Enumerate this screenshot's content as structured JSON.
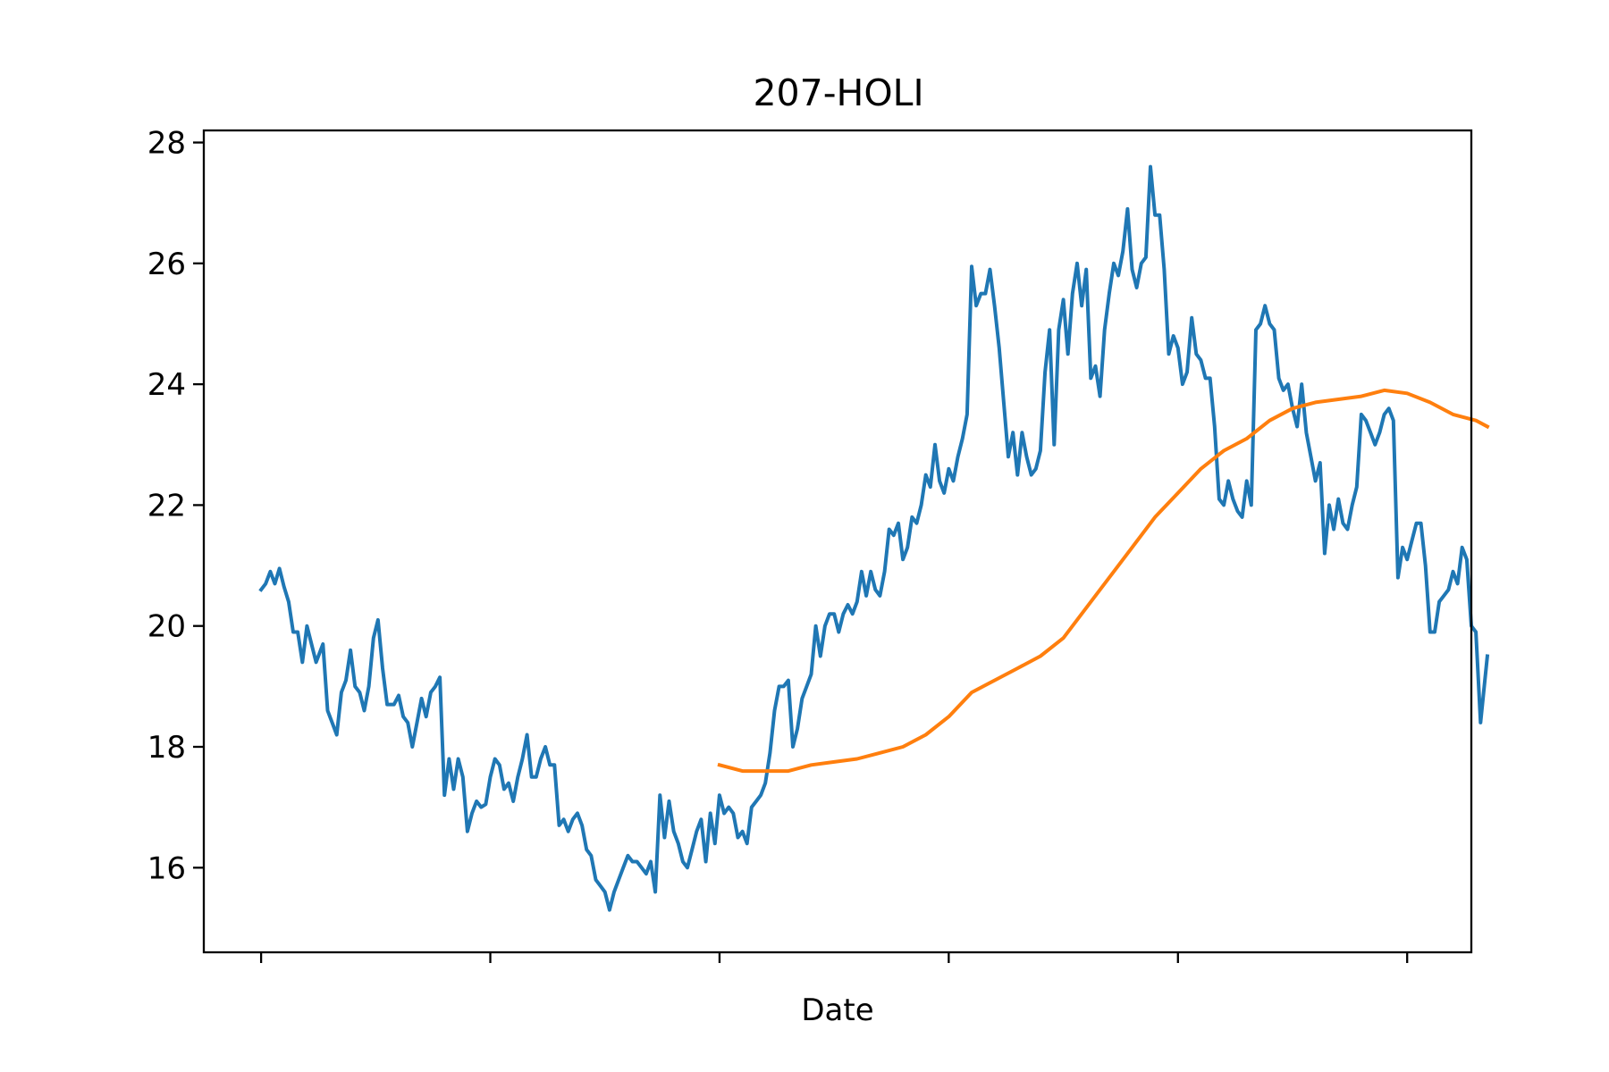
{
  "chart_data": {
    "type": "line",
    "title": "207-HOLI",
    "xlabel": "Date",
    "ylabel": "",
    "x_ticks": 6,
    "x_range": [
      -0.25,
      5.28
    ],
    "ylim": [
      14.6,
      28.2
    ],
    "y_ticks": [
      16,
      18,
      20,
      22,
      24,
      26,
      28
    ],
    "x_tick_labels": [
      "",
      "",
      "",
      "",
      "",
      ""
    ],
    "grid": false,
    "legend": "none",
    "series": [
      {
        "color": "#1f77b4",
        "points": [
          [
            0.0,
            20.6
          ],
          [
            0.02,
            20.7
          ],
          [
            0.04,
            20.9
          ],
          [
            0.06,
            20.7
          ],
          [
            0.08,
            20.95
          ],
          [
            0.1,
            20.65
          ],
          [
            0.12,
            20.4
          ],
          [
            0.14,
            19.9
          ],
          [
            0.16,
            19.9
          ],
          [
            0.18,
            19.4
          ],
          [
            0.2,
            20.0
          ],
          [
            0.22,
            19.7
          ],
          [
            0.24,
            19.4
          ],
          [
            0.27,
            19.7
          ],
          [
            0.29,
            18.6
          ],
          [
            0.31,
            18.4
          ],
          [
            0.33,
            18.2
          ],
          [
            0.35,
            18.9
          ],
          [
            0.37,
            19.1
          ],
          [
            0.39,
            19.6
          ],
          [
            0.41,
            19.0
          ],
          [
            0.43,
            18.9
          ],
          [
            0.45,
            18.6
          ],
          [
            0.47,
            19.0
          ],
          [
            0.49,
            19.8
          ],
          [
            0.51,
            20.1
          ],
          [
            0.53,
            19.3
          ],
          [
            0.55,
            18.7
          ],
          [
            0.58,
            18.7
          ],
          [
            0.6,
            18.85
          ],
          [
            0.62,
            18.5
          ],
          [
            0.64,
            18.4
          ],
          [
            0.66,
            18.0
          ],
          [
            0.68,
            18.4
          ],
          [
            0.7,
            18.8
          ],
          [
            0.72,
            18.5
          ],
          [
            0.74,
            18.9
          ],
          [
            0.76,
            19.0
          ],
          [
            0.78,
            19.15
          ],
          [
            0.8,
            17.2
          ],
          [
            0.82,
            17.8
          ],
          [
            0.84,
            17.3
          ],
          [
            0.86,
            17.8
          ],
          [
            0.88,
            17.5
          ],
          [
            0.9,
            16.6
          ],
          [
            0.92,
            16.9
          ],
          [
            0.94,
            17.1
          ],
          [
            0.96,
            17.0
          ],
          [
            0.98,
            17.05
          ],
          [
            1.0,
            17.5
          ],
          [
            1.02,
            17.8
          ],
          [
            1.04,
            17.7
          ],
          [
            1.06,
            17.3
          ],
          [
            1.08,
            17.4
          ],
          [
            1.1,
            17.1
          ],
          [
            1.12,
            17.5
          ],
          [
            1.14,
            17.8
          ],
          [
            1.16,
            18.2
          ],
          [
            1.18,
            17.5
          ],
          [
            1.2,
            17.5
          ],
          [
            1.22,
            17.8
          ],
          [
            1.24,
            18.0
          ],
          [
            1.26,
            17.7
          ],
          [
            1.28,
            17.7
          ],
          [
            1.3,
            16.7
          ],
          [
            1.32,
            16.8
          ],
          [
            1.34,
            16.6
          ],
          [
            1.36,
            16.8
          ],
          [
            1.38,
            16.9
          ],
          [
            1.4,
            16.7
          ],
          [
            1.42,
            16.3
          ],
          [
            1.44,
            16.2
          ],
          [
            1.46,
            15.8
          ],
          [
            1.48,
            15.7
          ],
          [
            1.5,
            15.6
          ],
          [
            1.52,
            15.3
          ],
          [
            1.54,
            15.6
          ],
          [
            1.56,
            15.8
          ],
          [
            1.58,
            16.0
          ],
          [
            1.6,
            16.2
          ],
          [
            1.62,
            16.1
          ],
          [
            1.64,
            16.1
          ],
          [
            1.66,
            16.0
          ],
          [
            1.68,
            15.9
          ],
          [
            1.7,
            16.1
          ],
          [
            1.72,
            15.6
          ],
          [
            1.74,
            17.2
          ],
          [
            1.76,
            16.5
          ],
          [
            1.78,
            17.1
          ],
          [
            1.8,
            16.6
          ],
          [
            1.82,
            16.4
          ],
          [
            1.84,
            16.1
          ],
          [
            1.86,
            16.0
          ],
          [
            1.88,
            16.3
          ],
          [
            1.9,
            16.6
          ],
          [
            1.92,
            16.8
          ],
          [
            1.94,
            16.1
          ],
          [
            1.96,
            16.9
          ],
          [
            1.98,
            16.4
          ],
          [
            2.0,
            17.2
          ],
          [
            2.02,
            16.9
          ],
          [
            2.04,
            17.0
          ],
          [
            2.06,
            16.9
          ],
          [
            2.08,
            16.5
          ],
          [
            2.1,
            16.6
          ],
          [
            2.12,
            16.4
          ],
          [
            2.14,
            17.0
          ],
          [
            2.16,
            17.1
          ],
          [
            2.18,
            17.2
          ],
          [
            2.2,
            17.4
          ],
          [
            2.22,
            17.9
          ],
          [
            2.24,
            18.6
          ],
          [
            2.26,
            19.0
          ],
          [
            2.28,
            19.0
          ],
          [
            2.3,
            19.1
          ],
          [
            2.32,
            18.0
          ],
          [
            2.34,
            18.3
          ],
          [
            2.36,
            18.8
          ],
          [
            2.38,
            19.0
          ],
          [
            2.4,
            19.2
          ],
          [
            2.42,
            20.0
          ],
          [
            2.44,
            19.5
          ],
          [
            2.46,
            20.0
          ],
          [
            2.48,
            20.2
          ],
          [
            2.5,
            20.2
          ],
          [
            2.52,
            19.9
          ],
          [
            2.54,
            20.2
          ],
          [
            2.56,
            20.35
          ],
          [
            2.58,
            20.2
          ],
          [
            2.6,
            20.4
          ],
          [
            2.62,
            20.9
          ],
          [
            2.64,
            20.5
          ],
          [
            2.66,
            20.9
          ],
          [
            2.68,
            20.6
          ],
          [
            2.7,
            20.5
          ],
          [
            2.72,
            20.9
          ],
          [
            2.74,
            21.6
          ],
          [
            2.76,
            21.5
          ],
          [
            2.78,
            21.7
          ],
          [
            2.8,
            21.1
          ],
          [
            2.82,
            21.3
          ],
          [
            2.84,
            21.8
          ],
          [
            2.86,
            21.7
          ],
          [
            2.88,
            22.0
          ],
          [
            2.9,
            22.5
          ],
          [
            2.92,
            22.3
          ],
          [
            2.94,
            23.0
          ],
          [
            2.96,
            22.4
          ],
          [
            2.98,
            22.2
          ],
          [
            3.0,
            22.6
          ],
          [
            3.02,
            22.4
          ],
          [
            3.04,
            22.8
          ],
          [
            3.06,
            23.1
          ],
          [
            3.08,
            23.5
          ],
          [
            3.1,
            25.95
          ],
          [
            3.12,
            25.3
          ],
          [
            3.14,
            25.5
          ],
          [
            3.16,
            25.5
          ],
          [
            3.18,
            25.9
          ],
          [
            3.2,
            25.3
          ],
          [
            3.22,
            24.6
          ],
          [
            3.24,
            23.7
          ],
          [
            3.26,
            22.8
          ],
          [
            3.28,
            23.2
          ],
          [
            3.3,
            22.5
          ],
          [
            3.32,
            23.2
          ],
          [
            3.34,
            22.8
          ],
          [
            3.36,
            22.5
          ],
          [
            3.38,
            22.6
          ],
          [
            3.4,
            22.9
          ],
          [
            3.42,
            24.2
          ],
          [
            3.44,
            24.9
          ],
          [
            3.46,
            23.0
          ],
          [
            3.48,
            24.9
          ],
          [
            3.5,
            25.4
          ],
          [
            3.52,
            24.5
          ],
          [
            3.54,
            25.5
          ],
          [
            3.56,
            26.0
          ],
          [
            3.58,
            25.3
          ],
          [
            3.6,
            25.9
          ],
          [
            3.62,
            24.1
          ],
          [
            3.64,
            24.3
          ],
          [
            3.66,
            23.8
          ],
          [
            3.68,
            24.9
          ],
          [
            3.7,
            25.5
          ],
          [
            3.72,
            26.0
          ],
          [
            3.74,
            25.8
          ],
          [
            3.76,
            26.2
          ],
          [
            3.78,
            26.9
          ],
          [
            3.8,
            25.9
          ],
          [
            3.82,
            25.6
          ],
          [
            3.84,
            26.0
          ],
          [
            3.86,
            26.1
          ],
          [
            3.88,
            27.6
          ],
          [
            3.9,
            26.8
          ],
          [
            3.92,
            26.8
          ],
          [
            3.94,
            25.9
          ],
          [
            3.96,
            24.5
          ],
          [
            3.98,
            24.8
          ],
          [
            4.0,
            24.6
          ],
          [
            4.02,
            24.0
          ],
          [
            4.04,
            24.2
          ],
          [
            4.06,
            25.1
          ],
          [
            4.08,
            24.5
          ],
          [
            4.1,
            24.4
          ],
          [
            4.12,
            24.1
          ],
          [
            4.14,
            24.1
          ],
          [
            4.16,
            23.3
          ],
          [
            4.18,
            22.1
          ],
          [
            4.2,
            22.0
          ],
          [
            4.22,
            22.4
          ],
          [
            4.24,
            22.1
          ],
          [
            4.26,
            21.9
          ],
          [
            4.28,
            21.8
          ],
          [
            4.3,
            22.4
          ],
          [
            4.32,
            22.0
          ],
          [
            4.34,
            24.9
          ],
          [
            4.36,
            25.0
          ],
          [
            4.38,
            25.3
          ],
          [
            4.4,
            25.0
          ],
          [
            4.42,
            24.9
          ],
          [
            4.44,
            24.1
          ],
          [
            4.46,
            23.9
          ],
          [
            4.48,
            24.0
          ],
          [
            4.5,
            23.6
          ],
          [
            4.52,
            23.3
          ],
          [
            4.54,
            24.0
          ],
          [
            4.56,
            23.2
          ],
          [
            4.58,
            22.8
          ],
          [
            4.6,
            22.4
          ],
          [
            4.62,
            22.7
          ],
          [
            4.64,
            21.2
          ],
          [
            4.66,
            22.0
          ],
          [
            4.68,
            21.6
          ],
          [
            4.7,
            22.1
          ],
          [
            4.72,
            21.7
          ],
          [
            4.74,
            21.6
          ],
          [
            4.76,
            22.0
          ],
          [
            4.78,
            22.3
          ],
          [
            4.8,
            23.5
          ],
          [
            4.82,
            23.4
          ],
          [
            4.84,
            23.2
          ],
          [
            4.86,
            23.0
          ],
          [
            4.88,
            23.2
          ],
          [
            4.9,
            23.5
          ],
          [
            4.92,
            23.6
          ],
          [
            4.94,
            23.4
          ],
          [
            4.96,
            20.8
          ],
          [
            4.98,
            21.3
          ],
          [
            5.0,
            21.1
          ],
          [
            5.02,
            21.4
          ],
          [
            5.04,
            21.7
          ],
          [
            5.06,
            21.7
          ],
          [
            5.08,
            21.0
          ],
          [
            5.1,
            19.9
          ],
          [
            5.12,
            19.9
          ],
          [
            5.14,
            20.4
          ],
          [
            5.16,
            20.5
          ],
          [
            5.18,
            20.6
          ],
          [
            5.2,
            20.9
          ],
          [
            5.22,
            20.7
          ],
          [
            5.24,
            21.3
          ],
          [
            5.26,
            21.1
          ],
          [
            5.28,
            20.0
          ],
          [
            5.3,
            19.9
          ],
          [
            5.32,
            18.4
          ],
          [
            5.35,
            19.5
          ]
        ]
      },
      {
        "color": "#ff7f0e",
        "points": [
          [
            2.0,
            17.7
          ],
          [
            2.1,
            17.6
          ],
          [
            2.2,
            17.6
          ],
          [
            2.3,
            17.6
          ],
          [
            2.4,
            17.7
          ],
          [
            2.5,
            17.75
          ],
          [
            2.6,
            17.8
          ],
          [
            2.7,
            17.9
          ],
          [
            2.8,
            18.0
          ],
          [
            2.9,
            18.2
          ],
          [
            3.0,
            18.5
          ],
          [
            3.1,
            18.9
          ],
          [
            3.2,
            19.1
          ],
          [
            3.3,
            19.3
          ],
          [
            3.4,
            19.5
          ],
          [
            3.5,
            19.8
          ],
          [
            3.6,
            20.3
          ],
          [
            3.7,
            20.8
          ],
          [
            3.8,
            21.3
          ],
          [
            3.9,
            21.8
          ],
          [
            4.0,
            22.2
          ],
          [
            4.1,
            22.6
          ],
          [
            4.2,
            22.9
          ],
          [
            4.3,
            23.1
          ],
          [
            4.4,
            23.4
          ],
          [
            4.5,
            23.6
          ],
          [
            4.6,
            23.7
          ],
          [
            4.7,
            23.75
          ],
          [
            4.8,
            23.8
          ],
          [
            4.9,
            23.9
          ],
          [
            5.0,
            23.85
          ],
          [
            5.1,
            23.7
          ],
          [
            5.2,
            23.5
          ],
          [
            5.3,
            23.4
          ],
          [
            5.35,
            23.3
          ]
        ]
      }
    ]
  }
}
